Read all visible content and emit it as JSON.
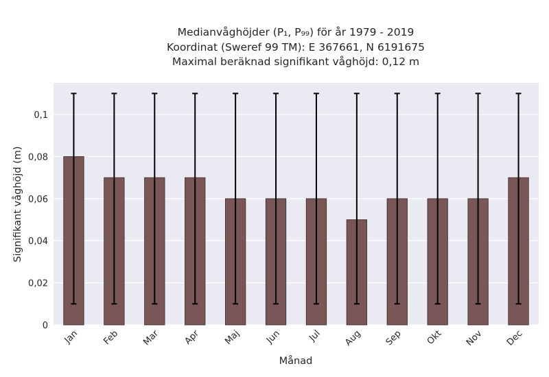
{
  "chart_data": {
    "type": "bar",
    "title_lines": [
      "Medianvåghöjder (P₁, P₉₉) för år 1979 - 2019",
      "Koordinat (Sweref 99 TM): E 367661, N 6191675",
      "Maximal beräknad signifikant våghöjd: 0,12 m"
    ],
    "xlabel": "Månad",
    "ylabel": "Signifikant våghöjd (m)",
    "categories": [
      "Jan",
      "Feb",
      "Mar",
      "Apr",
      "Maj",
      "Jun",
      "Jul",
      "Aug",
      "Sep",
      "Okt",
      "Nov",
      "Dec"
    ],
    "values": [
      0.08,
      0.07,
      0.07,
      0.07,
      0.06,
      0.06,
      0.06,
      0.05,
      0.06,
      0.06,
      0.06,
      0.07
    ],
    "error_low": [
      0.01,
      0.01,
      0.01,
      0.01,
      0.01,
      0.01,
      0.01,
      0.01,
      0.01,
      0.01,
      0.01,
      0.01
    ],
    "error_high": [
      0.11,
      0.11,
      0.11,
      0.11,
      0.11,
      0.11,
      0.11,
      0.11,
      0.11,
      0.11,
      0.11,
      0.11
    ],
    "ylim": [
      0,
      0.115
    ],
    "yticks": [
      0,
      0.02,
      0.04,
      0.06,
      0.08,
      0.1
    ],
    "ytick_labels": [
      "0",
      "0,02",
      "0,04",
      "0,06",
      "0,08",
      "0,1"
    ],
    "grid": true,
    "colors": {
      "bar_fill": "#7a5757",
      "bar_edge": "#3a2a2a",
      "error_bar": "#000000",
      "plot_background": "#eaeaf2",
      "grid": "#ffffff"
    }
  }
}
